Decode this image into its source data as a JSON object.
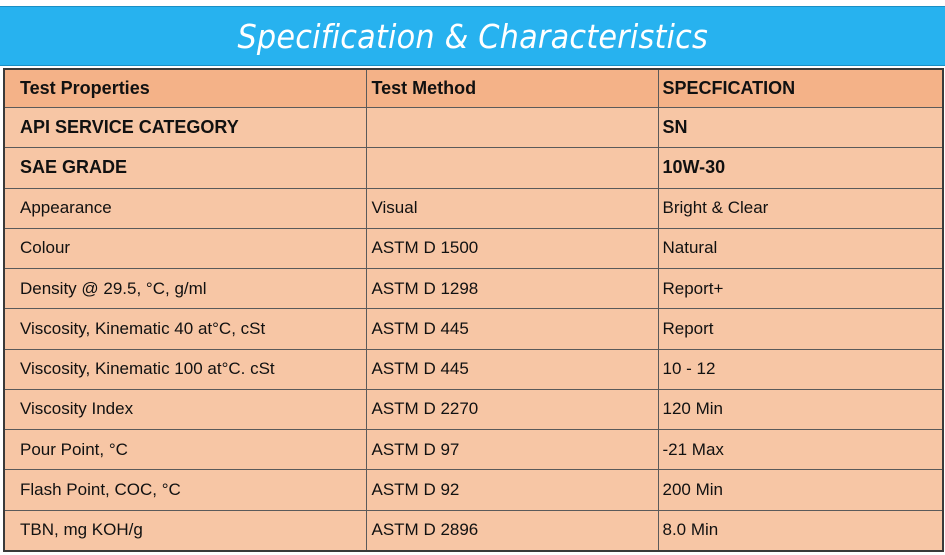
{
  "banner": {
    "title": "Specification & Characteristics"
  },
  "table": {
    "headers": [
      "Test Properties",
      "Test Method",
      "SPECFICATION"
    ],
    "rows": [
      {
        "property": "API SERVICE CATEGORY",
        "method": "",
        "spec": "SN",
        "bold": true
      },
      {
        "property": "SAE GRADE",
        "method": "",
        "spec": "10W-30",
        "bold": true
      },
      {
        "property": "Appearance",
        "method": "Visual",
        "spec": "Bright & Clear"
      },
      {
        "property": "Colour",
        "method": "ASTM D 1500",
        "spec": "Natural"
      },
      {
        "property": "Density @ 29.5, °C, g/ml",
        "method": "ASTM D 1298",
        "spec": "Report+"
      },
      {
        "property": "Viscosity, Kinematic 40 at°C, cSt",
        "method": "ASTM D 445",
        "spec": "Report"
      },
      {
        "property": "Viscosity, Kinematic 100 at°C. cSt",
        "method": "ASTM D 445",
        "spec": "10 -  12"
      },
      {
        "property": "Viscosity Index",
        "method": "ASTM D 2270",
        "spec": "120 Min"
      },
      {
        "property": "Pour Point, °C",
        "method": "ASTM D 97",
        "spec": "-21 Max"
      },
      {
        "property": "Flash Point, COC, °C",
        "method": "ASTM D 92",
        "spec": "200 Min"
      },
      {
        "property": "TBN, mg KOH/g",
        "method": "ASTM D 2896",
        "spec": "8.0 Min"
      }
    ]
  },
  "colors": {
    "banner": "#27b2ef",
    "header_row": "#f4b288",
    "body_row": "#f7c6a5"
  }
}
